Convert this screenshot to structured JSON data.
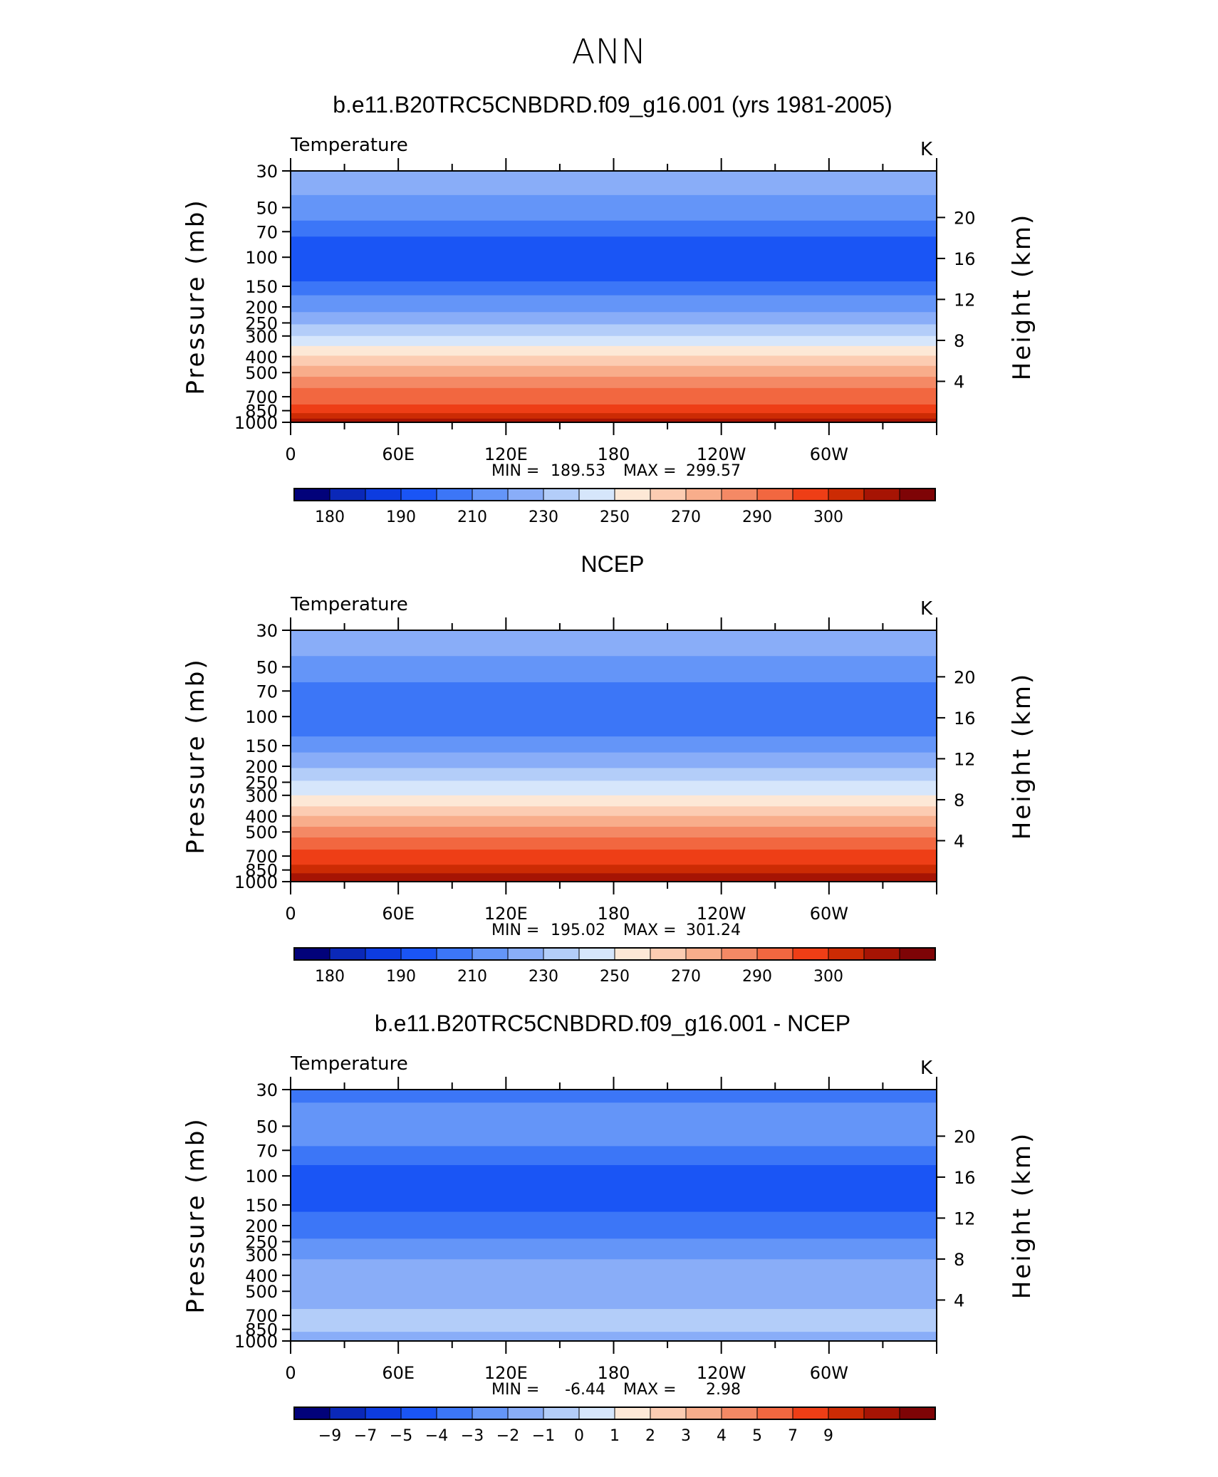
{
  "figure": {
    "title": "ANN"
  },
  "chart_data": [
    {
      "type": "heatmap",
      "title": "b.e11.B20TRC5CNBDRD.f09_g16.001 (yrs 1981-2005)",
      "subtitle_left": "Temperature",
      "units": "K",
      "ylabel": "Pressure (mb)",
      "ylabel_right": "Height (km)",
      "y_scale": "log",
      "ylim": [
        1000,
        30
      ],
      "yticks": [
        "30",
        "50",
        "70",
        "100",
        "150",
        "200",
        "250",
        "300",
        "400",
        "500",
        "700",
        "850",
        "1000"
      ],
      "yticks_right": [
        "20",
        "16",
        "12",
        "8",
        "4"
      ],
      "xlim": [
        0,
        360
      ],
      "xticks": [
        "0",
        "60E",
        "120E",
        "180",
        "120W",
        "60W"
      ],
      "stats": {
        "min_label": "MIN =",
        "min": "189.53",
        "max_label": "MAX =",
        "max": "299.57"
      },
      "colorbar_labels": [
        "180",
        "190",
        "210",
        "230",
        "250",
        "270",
        "290",
        "300"
      ],
      "layers": [
        {
          "p": 30,
          "c": 6
        },
        {
          "p": 42,
          "c": 5
        },
        {
          "p": 60,
          "c": 4
        },
        {
          "p": 75,
          "c": 3
        },
        {
          "p": 140,
          "c": 4
        },
        {
          "p": 170,
          "c": 5
        },
        {
          "p": 215,
          "c": 6
        },
        {
          "p": 255,
          "c": 7
        },
        {
          "p": 300,
          "c": 8
        },
        {
          "p": 345,
          "c": 9
        },
        {
          "p": 395,
          "c": 10
        },
        {
          "p": 455,
          "c": 11
        },
        {
          "p": 530,
          "c": 12
        },
        {
          "p": 620,
          "c": 13
        },
        {
          "p": 780,
          "c": 14
        },
        {
          "p": 880,
          "c": 15
        },
        {
          "p": 950,
          "c": 16
        }
      ]
    },
    {
      "type": "heatmap",
      "title": "NCEP",
      "subtitle_left": "Temperature",
      "units": "K",
      "ylabel": "Pressure (mb)",
      "ylabel_right": "Height (km)",
      "y_scale": "log",
      "ylim": [
        1000,
        30
      ],
      "yticks": [
        "30",
        "50",
        "70",
        "100",
        "150",
        "200",
        "250",
        "300",
        "400",
        "500",
        "700",
        "850",
        "1000"
      ],
      "yticks_right": [
        "20",
        "16",
        "12",
        "8",
        "4"
      ],
      "xlim": [
        0,
        360
      ],
      "xticks": [
        "0",
        "60E",
        "120E",
        "180",
        "120W",
        "60W"
      ],
      "stats": {
        "min_label": "MIN =",
        "min": "195.02",
        "max_label": "MAX =",
        "max": "301.24"
      },
      "colorbar_labels": [
        "180",
        "190",
        "210",
        "230",
        "250",
        "270",
        "290",
        "300"
      ],
      "layers": [
        {
          "p": 30,
          "c": 6
        },
        {
          "p": 43,
          "c": 5
        },
        {
          "p": 62,
          "c": 4
        },
        {
          "p": 132,
          "c": 5
        },
        {
          "p": 165,
          "c": 6
        },
        {
          "p": 205,
          "c": 7
        },
        {
          "p": 245,
          "c": 8
        },
        {
          "p": 300,
          "c": 9
        },
        {
          "p": 350,
          "c": 10
        },
        {
          "p": 400,
          "c": 11
        },
        {
          "p": 465,
          "c": 12
        },
        {
          "p": 540,
          "c": 13
        },
        {
          "p": 640,
          "c": 14
        },
        {
          "p": 790,
          "c": 15
        },
        {
          "p": 890,
          "c": 16
        }
      ]
    },
    {
      "type": "heatmap",
      "title": "b.e11.B20TRC5CNBDRD.f09_g16.001 - NCEP",
      "subtitle_left": "Temperature",
      "units": "K",
      "ylabel": "Pressure (mb)",
      "ylabel_right": "Height (km)",
      "y_scale": "log",
      "ylim": [
        1000,
        30
      ],
      "yticks": [
        "30",
        "50",
        "70",
        "100",
        "150",
        "200",
        "250",
        "300",
        "400",
        "500",
        "700",
        "850",
        "1000"
      ],
      "yticks_right": [
        "20",
        "16",
        "12",
        "8",
        "4"
      ],
      "xlim": [
        0,
        360
      ],
      "xticks": [
        "0",
        "60E",
        "120E",
        "180",
        "120W",
        "60W"
      ],
      "stats": {
        "min_label": "MIN =",
        "min": "-6.44",
        "max_label": "MAX =",
        "max": "2.98"
      },
      "colorbar_labels": [
        "−9",
        "−7",
        "−5",
        "−4",
        "−3",
        "−2",
        "−1",
        "0",
        "1",
        "2",
        "3",
        "4",
        "5",
        "7",
        "9"
      ],
      "layers": [
        {
          "p": 30,
          "c": 4
        },
        {
          "p": 36,
          "c": 5
        },
        {
          "p": 66,
          "c": 4
        },
        {
          "p": 86,
          "c": 3
        },
        {
          "p": 165,
          "c": 4
        },
        {
          "p": 240,
          "c": 5
        },
        {
          "p": 320,
          "c": 6
        },
        {
          "p": 640,
          "c": 7
        },
        {
          "p": 880,
          "c": 6
        }
      ]
    }
  ],
  "palettes": {
    "temperature": [
      "#02027a",
      "#0a28b8",
      "#0d3ce0",
      "#1a55f5",
      "#3c76f7",
      "#6495f8",
      "#89adf8",
      "#b3cdf9",
      "#d6e6fb",
      "#fde8d6",
      "#fcccb2",
      "#f8ad8b",
      "#f48965",
      "#f26740",
      "#ee3e16",
      "#cc2b04",
      "#a61404",
      "#7e0406"
    ],
    "difference": [
      "#02027a",
      "#0a28b8",
      "#0d3ce0",
      "#1a55f5",
      "#3c76f7",
      "#6495f8",
      "#89adf8",
      "#b3cdf9",
      "#d6e6fb",
      "#fde8d6",
      "#fcccb2",
      "#f8ad8b",
      "#f48965",
      "#f26740",
      "#ee3e16",
      "#cc2b04",
      "#a61404",
      "#7e0406"
    ]
  }
}
